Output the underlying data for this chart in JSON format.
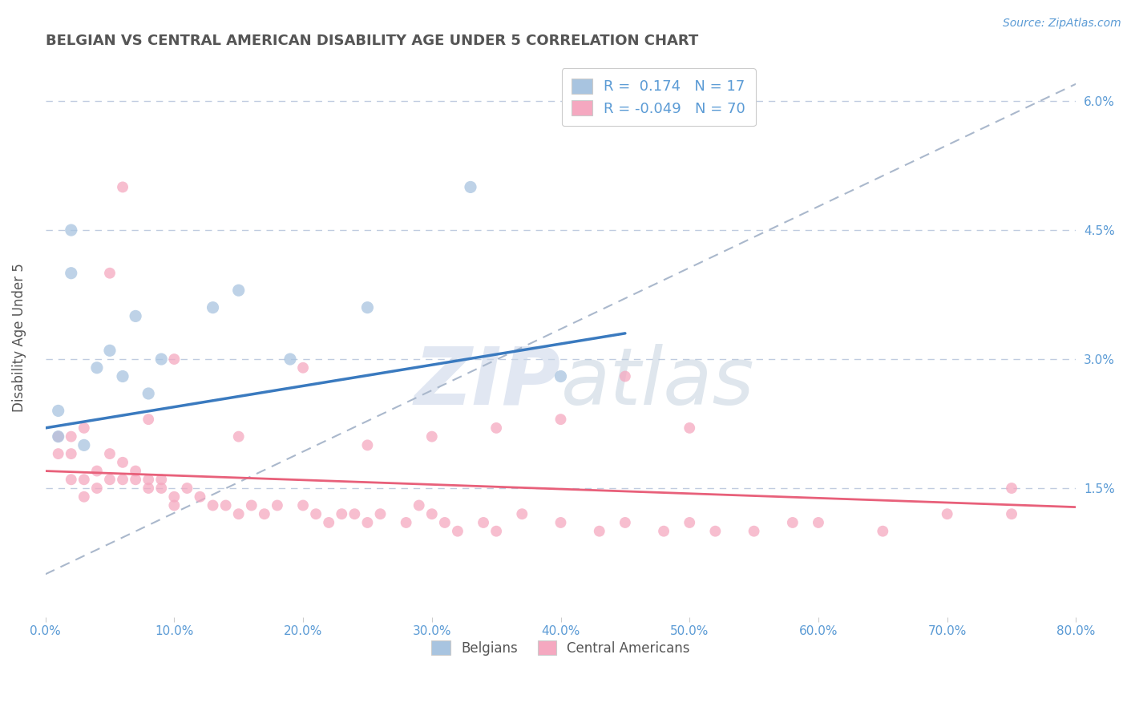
{
  "title": "BELGIAN VS CENTRAL AMERICAN DISABILITY AGE UNDER 5 CORRELATION CHART",
  "source": "Source: ZipAtlas.com",
  "ylabel": "Disability Age Under 5",
  "xlim": [
    0,
    0.8
  ],
  "ylim": [
    0,
    0.065
  ],
  "yticks": [
    0.0,
    0.015,
    0.03,
    0.045,
    0.06
  ],
  "ytick_labels": [
    "",
    "1.5%",
    "3.0%",
    "4.5%",
    "6.0%"
  ],
  "xticks": [
    0.0,
    0.1,
    0.2,
    0.3,
    0.4,
    0.5,
    0.6,
    0.7,
    0.8
  ],
  "xtick_labels": [
    "0.0%",
    "10.0%",
    "20.0%",
    "30.0%",
    "40.0%",
    "50.0%",
    "60.0%",
    "70.0%",
    "80.0%"
  ],
  "belgian_scatter_x": [
    0.01,
    0.01,
    0.02,
    0.02,
    0.03,
    0.04,
    0.05,
    0.06,
    0.07,
    0.08,
    0.09,
    0.13,
    0.15,
    0.19,
    0.25,
    0.33,
    0.4
  ],
  "belgian_scatter_y": [
    0.021,
    0.024,
    0.04,
    0.045,
    0.02,
    0.029,
    0.031,
    0.028,
    0.035,
    0.026,
    0.03,
    0.036,
    0.038,
    0.03,
    0.036,
    0.05,
    0.028
  ],
  "central_scatter_x": [
    0.01,
    0.01,
    0.02,
    0.02,
    0.02,
    0.03,
    0.03,
    0.03,
    0.04,
    0.04,
    0.05,
    0.05,
    0.06,
    0.06,
    0.07,
    0.07,
    0.08,
    0.08,
    0.09,
    0.09,
    0.1,
    0.1,
    0.11,
    0.12,
    0.13,
    0.14,
    0.15,
    0.16,
    0.17,
    0.18,
    0.2,
    0.21,
    0.22,
    0.23,
    0.24,
    0.25,
    0.26,
    0.28,
    0.29,
    0.3,
    0.31,
    0.32,
    0.34,
    0.35,
    0.37,
    0.4,
    0.43,
    0.45,
    0.48,
    0.5,
    0.52,
    0.55,
    0.58,
    0.6,
    0.65,
    0.7,
    0.75,
    0.05,
    0.06,
    0.08,
    0.1,
    0.15,
    0.2,
    0.25,
    0.3,
    0.35,
    0.4,
    0.45,
    0.5,
    0.75
  ],
  "central_scatter_y": [
    0.021,
    0.019,
    0.019,
    0.016,
    0.021,
    0.016,
    0.014,
    0.022,
    0.015,
    0.017,
    0.016,
    0.019,
    0.016,
    0.018,
    0.016,
    0.017,
    0.015,
    0.016,
    0.015,
    0.016,
    0.014,
    0.013,
    0.015,
    0.014,
    0.013,
    0.013,
    0.012,
    0.013,
    0.012,
    0.013,
    0.013,
    0.012,
    0.011,
    0.012,
    0.012,
    0.011,
    0.012,
    0.011,
    0.013,
    0.012,
    0.011,
    0.01,
    0.011,
    0.01,
    0.012,
    0.011,
    0.01,
    0.011,
    0.01,
    0.011,
    0.01,
    0.01,
    0.011,
    0.011,
    0.01,
    0.012,
    0.012,
    0.04,
    0.05,
    0.023,
    0.03,
    0.021,
    0.029,
    0.02,
    0.021,
    0.022,
    0.023,
    0.028,
    0.022,
    0.015
  ],
  "belgian_line_x0": 0.0,
  "belgian_line_y0": 0.022,
  "belgian_line_x1": 0.45,
  "belgian_line_y1": 0.033,
  "central_line_x0": 0.0,
  "central_line_y0": 0.017,
  "central_line_x1": 0.8,
  "central_line_y1": 0.0128,
  "dash_line_x0": 0.0,
  "dash_line_y0": 0.005,
  "dash_line_x1": 0.8,
  "dash_line_y1": 0.062,
  "belgian_color": "#a8c4e0",
  "central_color": "#f5a8c0",
  "belgian_line_color": "#3a7abf",
  "central_line_color": "#e8607a",
  "dashed_line_color": "#aab8cc",
  "legend_R_belgian": "0.174",
  "legend_N_belgian": "17",
  "legend_R_central": "-0.049",
  "legend_N_central": "70",
  "watermark_zip": "ZIP",
  "watermark_atlas": "atlas",
  "title_color": "#555555",
  "axis_tick_color": "#5b9bd5",
  "background_color": "#ffffff",
  "grid_color": "#c0cce0",
  "scatter_size_belgian": 120,
  "scatter_size_central": 100
}
